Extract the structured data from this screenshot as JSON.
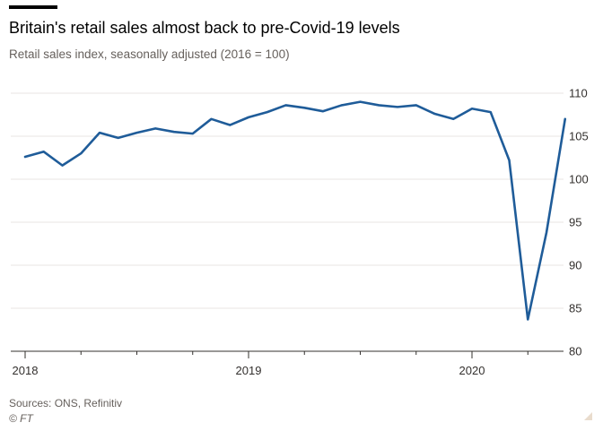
{
  "header": {
    "title": "Britain's retail sales almost back to pre-Covid-19 levels",
    "subtitle": "Retail sales index, seasonally adjusted (2016 = 100)"
  },
  "footer": {
    "source": "Sources: ONS, Refinitiv",
    "copyright": "© FT"
  },
  "colors": {
    "line": "#1f5c99",
    "grid": "#e8e6e3",
    "axis": "#33302e",
    "text": "#33302e"
  },
  "chart_data": {
    "type": "line",
    "title": "Britain's retail sales almost back to pre-Covid-19 levels",
    "subtitle": "Retail sales index, seasonally adjusted (2016 = 100)",
    "xlabel": "",
    "ylabel": "",
    "ylim": [
      80,
      110
    ],
    "yticks": [
      80,
      85,
      90,
      95,
      100,
      105,
      110
    ],
    "xticks": [
      "2018",
      "2019",
      "2020"
    ],
    "grid": true,
    "legend": "none",
    "series": [
      {
        "x": [
          "2018-01",
          "2018-02",
          "2018-03",
          "2018-04",
          "2018-05",
          "2018-06",
          "2018-07",
          "2018-08",
          "2018-09",
          "2018-10",
          "2018-11",
          "2018-12",
          "2019-01",
          "2019-02",
          "2019-03",
          "2019-04",
          "2019-05",
          "2019-06",
          "2019-07",
          "2019-08",
          "2019-09",
          "2019-10",
          "2019-11",
          "2019-12",
          "2020-01",
          "2020-02",
          "2020-03",
          "2020-04",
          "2020-05",
          "2020-06"
        ],
        "values": [
          102.6,
          103.2,
          101.6,
          103.0,
          105.4,
          104.8,
          105.4,
          105.9,
          105.5,
          105.3,
          107.0,
          106.3,
          107.2,
          107.8,
          108.6,
          108.3,
          107.9,
          108.6,
          109.0,
          108.6,
          108.4,
          108.6,
          107.6,
          107.0,
          108.2,
          107.8,
          102.2,
          83.7,
          93.8,
          107.0
        ]
      }
    ]
  }
}
